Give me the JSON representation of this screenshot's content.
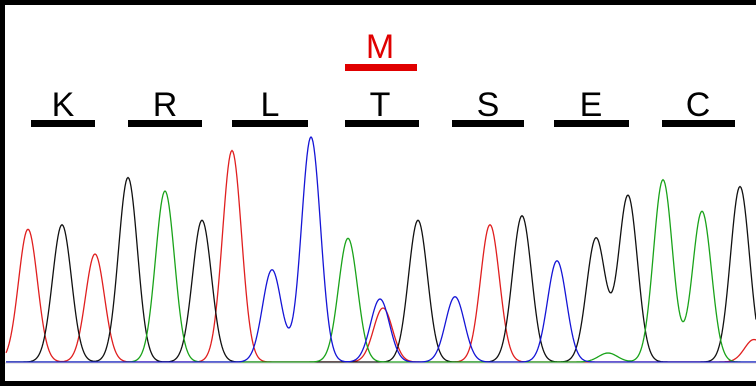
{
  "figure": {
    "mutation": {
      "letter": "M",
      "color": "#e00000",
      "position_index": 3
    },
    "residues": [
      {
        "letter": "K"
      },
      {
        "letter": "R"
      },
      {
        "letter": "L"
      },
      {
        "letter": "T"
      },
      {
        "letter": "S"
      },
      {
        "letter": "E"
      },
      {
        "letter": "C"
      }
    ]
  },
  "chart_data": {
    "type": "line",
    "title": "",
    "xlabel": "",
    "ylabel": "",
    "grid": false,
    "legend": "none",
    "trace_colors": {
      "A": "#1aa31a",
      "C": "#1515d6",
      "G": "#111111",
      "T": "#e01f1f"
    },
    "series": [
      {
        "name": "",
        "color": "#e01f1f",
        "peaks": [
          [
            28,
            0.59
          ],
          [
            95,
            0.48
          ],
          [
            232,
            0.94
          ],
          [
            383,
            0.24
          ],
          [
            490,
            0.61
          ],
          [
            754,
            0.1
          ]
        ]
      },
      {
        "name": "",
        "color": "#111111",
        "peaks": [
          [
            62,
            0.61
          ],
          [
            128,
            0.82
          ],
          [
            202,
            0.63
          ],
          [
            418,
            0.63
          ],
          [
            522,
            0.65
          ],
          [
            596,
            0.55
          ],
          [
            628,
            0.74
          ],
          [
            740,
            0.78
          ]
        ]
      },
      {
        "name": "",
        "color": "#1aa31a",
        "peaks": [
          [
            165,
            0.76
          ],
          [
            348,
            0.55
          ],
          [
            663,
            0.81
          ],
          [
            702,
            0.67
          ],
          [
            608,
            0.04
          ]
        ]
      },
      {
        "name": "",
        "color": "#1515d6",
        "peaks": [
          [
            272,
            0.41
          ],
          [
            311,
            1.0
          ],
          [
            380,
            0.28
          ],
          [
            455,
            0.29
          ],
          [
            557,
            0.45
          ]
        ]
      }
    ]
  }
}
